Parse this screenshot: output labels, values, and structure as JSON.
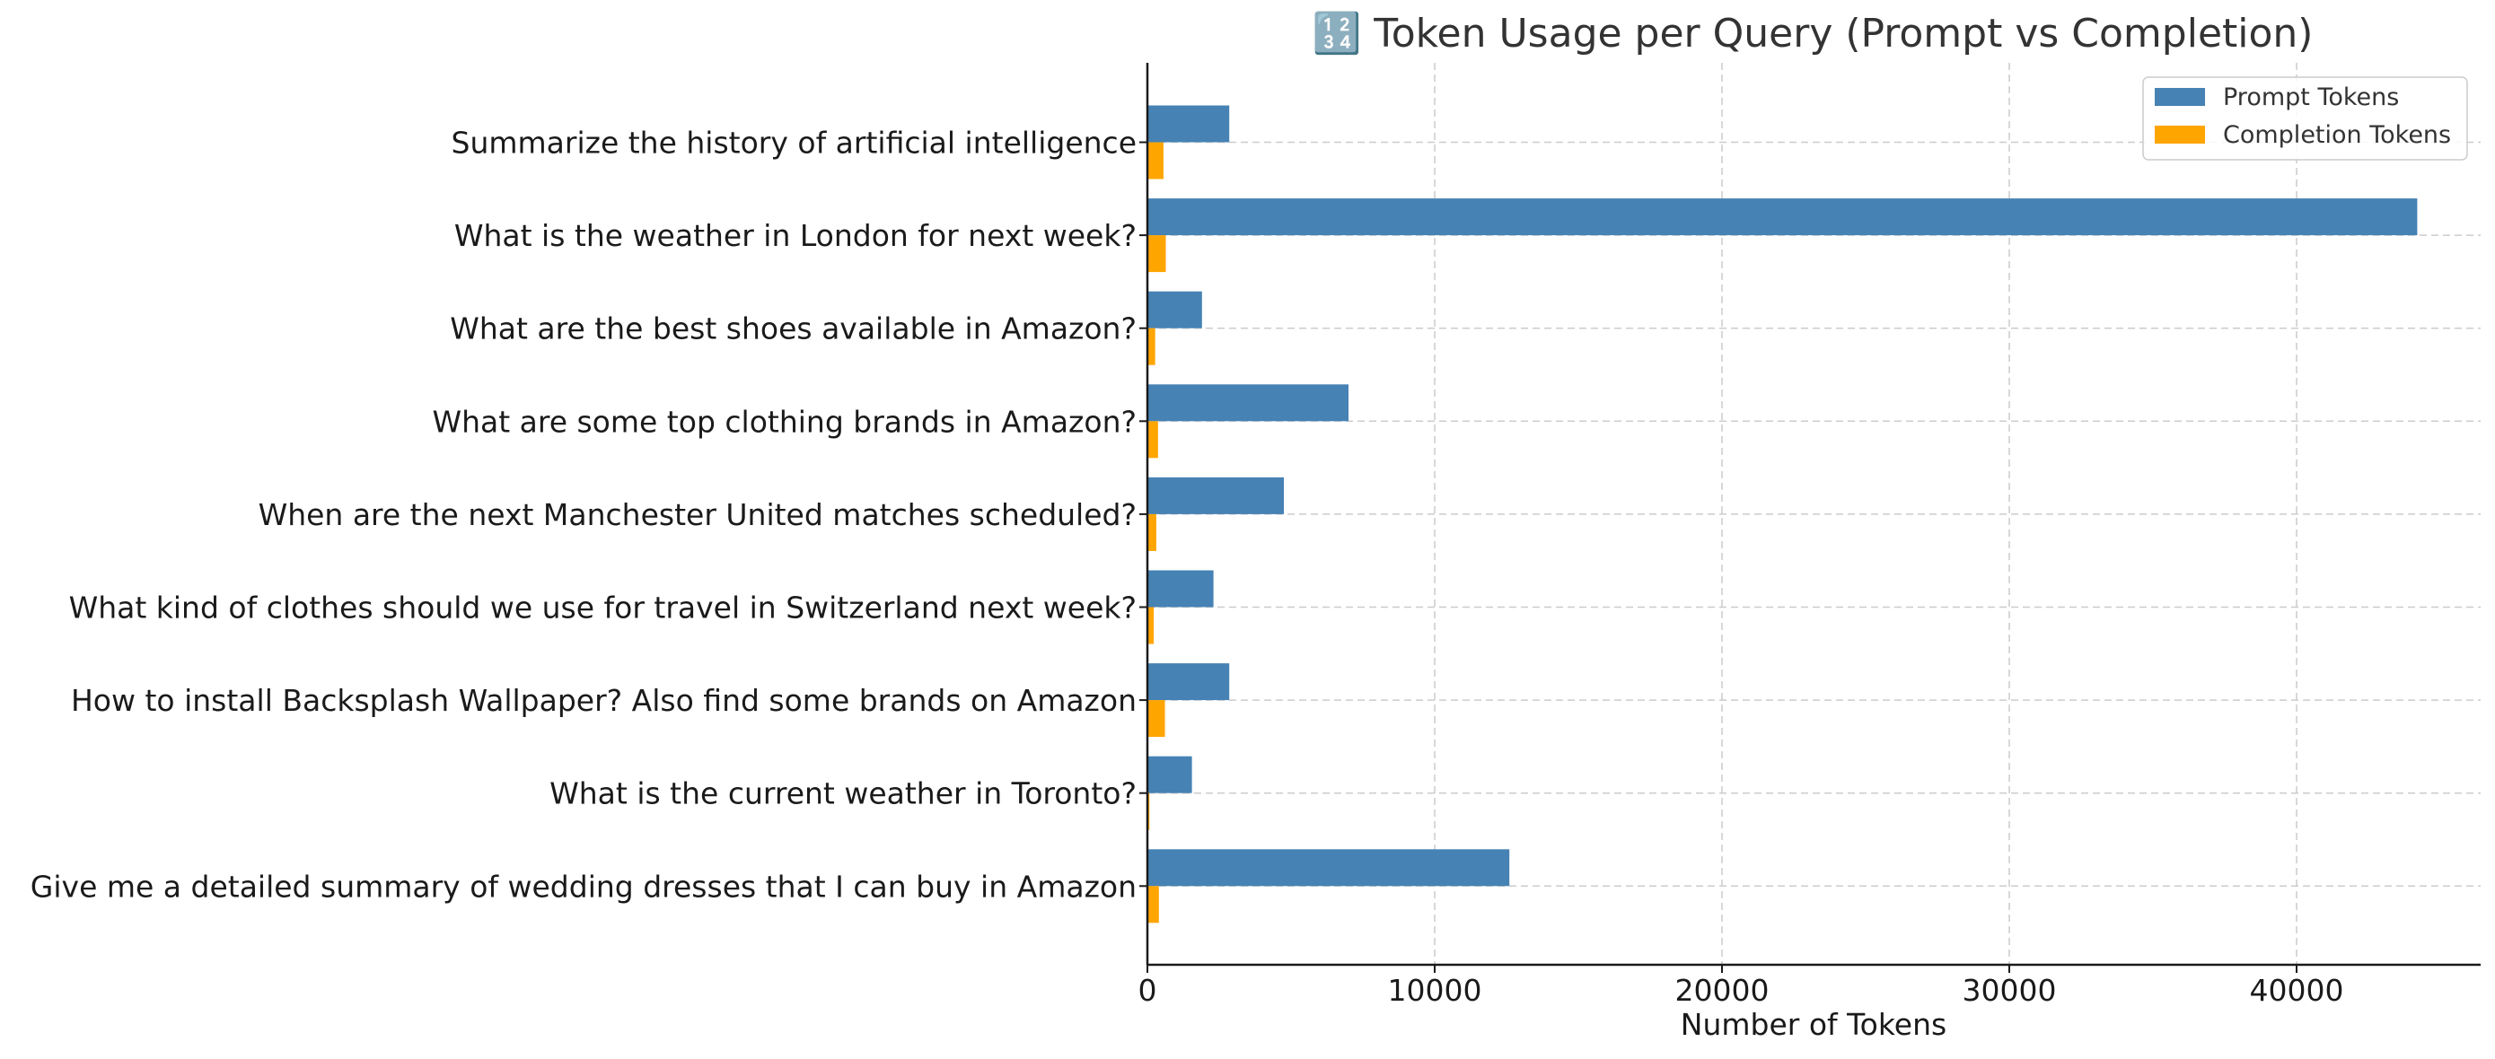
{
  "chart_data": {
    "type": "bar",
    "orientation": "horizontal",
    "title": "🔢 Token Usage per Query (Prompt vs Completion)",
    "xlabel": "Number of Tokens",
    "ylabel": "",
    "xlim": [
      0,
      46500
    ],
    "xticks": [
      0,
      10000,
      20000,
      30000,
      40000
    ],
    "grid": true,
    "legend_position": "top-right",
    "categories": [
      "Summarize the history of artificial intelligence",
      "What is the weather in London for next week?",
      "What are the best shoes available in Amazon?",
      "What are some top clothing brands in Amazon?",
      "When are the next Manchester United matches scheduled?",
      "What kind of clothes should we use for travel in Switzerland next week?",
      "How to install Backsplash Wallpaper? Also find some brands on Amazon",
      "What is the current weather in Toronto?",
      "Give me a detailed summary of wedding dresses that I can buy in Amazon"
    ],
    "series": [
      {
        "name": "Prompt Tokens",
        "color": "#4682b4",
        "values": [
          2850,
          44200,
          1900,
          7000,
          4750,
          2300,
          2850,
          1550,
          12600
        ]
      },
      {
        "name": "Completion Tokens",
        "color": "#ffa500",
        "values": [
          560,
          640,
          270,
          370,
          310,
          220,
          610,
          70,
          400
        ]
      }
    ]
  }
}
